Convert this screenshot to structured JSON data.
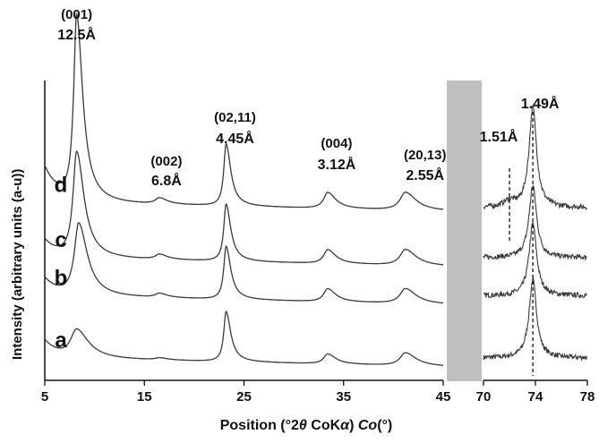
{
  "chart_data": {
    "type": "line",
    "title": "",
    "xlabel_parts": [
      "Position (°2",
      "θ",
      " CoK",
      "α",
      ") ",
      "Co",
      "(°)"
    ],
    "ylabel": "Intensity (arbitrary units (a-u))",
    "grid": false,
    "legend": "none",
    "main_panel": {
      "xlim": [
        5,
        45
      ],
      "xticks": [
        5,
        15,
        25,
        35,
        45
      ],
      "xtick_labels": [
        "5",
        "15",
        "25",
        "35",
        "45"
      ]
    },
    "inset_panel": {
      "xlim": [
        70,
        78
      ],
      "xticks": [
        70,
        74,
        78
      ],
      "xtick_labels": [
        "70",
        "74",
        "78"
      ]
    },
    "reflections": [
      {
        "hkl": "(001)",
        "d": "12.5Å",
        "x": 8.2
      },
      {
        "hkl": "(002)",
        "d": "6.8Å",
        "x": 16.5
      },
      {
        "hkl": "(02,11)",
        "d": "4.45Å",
        "x": 23.2
      },
      {
        "hkl": "(004)",
        "d": "3.12Å",
        "x": 33.4
      },
      {
        "hkl": "(20,13)",
        "d": "2.55Å",
        "x": 41.2
      }
    ],
    "inset_reflections": [
      {
        "d": "1.49Å",
        "x": 73.8
      },
      {
        "d": "1.51Å",
        "x": 72.0
      }
    ],
    "series": [
      {
        "name": "a",
        "baseline": 0.0,
        "peaks": [
          {
            "x": 8.2,
            "h": 0.28,
            "w": 0.9
          },
          {
            "x": 16.5,
            "h": 0.02,
            "w": 0.6
          },
          {
            "x": 23.2,
            "h": 0.5,
            "w": 0.35
          },
          {
            "x": 33.4,
            "h": 0.1,
            "w": 0.6
          },
          {
            "x": 41.2,
            "h": 0.13,
            "w": 0.8
          }
        ],
        "inset_peaks": [
          {
            "x": 73.8,
            "h": 0.78,
            "w": 0.35
          }
        ]
      },
      {
        "name": "b",
        "baseline": 0.62,
        "peaks": [
          {
            "x": 8.4,
            "h": 0.72,
            "w": 0.65
          },
          {
            "x": 16.5,
            "h": 0.04,
            "w": 0.6
          },
          {
            "x": 23.2,
            "h": 0.53,
            "w": 0.35
          },
          {
            "x": 33.4,
            "h": 0.13,
            "w": 0.6
          },
          {
            "x": 41.2,
            "h": 0.15,
            "w": 0.8
          }
        ],
        "inset_peaks": [
          {
            "x": 73.8,
            "h": 0.72,
            "w": 0.35
          }
        ]
      },
      {
        "name": "c",
        "baseline": 1.0,
        "peaks": [
          {
            "x": 8.2,
            "h": 1.05,
            "w": 0.55
          },
          {
            "x": 16.5,
            "h": 0.05,
            "w": 0.6
          },
          {
            "x": 23.2,
            "h": 0.57,
            "w": 0.35
          },
          {
            "x": 33.4,
            "h": 0.14,
            "w": 0.6
          },
          {
            "x": 41.2,
            "h": 0.16,
            "w": 0.8
          }
        ],
        "inset_peaks": [
          {
            "x": 73.8,
            "h": 0.72,
            "w": 0.35
          }
        ]
      },
      {
        "name": "d",
        "baseline": 1.55,
        "peaks": [
          {
            "x": 8.2,
            "h": 1.85,
            "w": 0.45
          },
          {
            "x": 16.5,
            "h": 0.06,
            "w": 0.6
          },
          {
            "x": 23.2,
            "h": 0.62,
            "w": 0.35
          },
          {
            "x": 33.4,
            "h": 0.16,
            "w": 0.6
          },
          {
            "x": 41.2,
            "h": 0.18,
            "w": 0.8
          }
        ],
        "inset_peaks": [
          {
            "x": 73.8,
            "h": 1.0,
            "w": 0.35
          },
          {
            "x": 72.0,
            "h": 0.06,
            "w": 0.5
          }
        ]
      }
    ],
    "colors": {
      "trace": "#3a3a3a",
      "axis": "#111111",
      "break_band": "#bfbfbf"
    }
  }
}
